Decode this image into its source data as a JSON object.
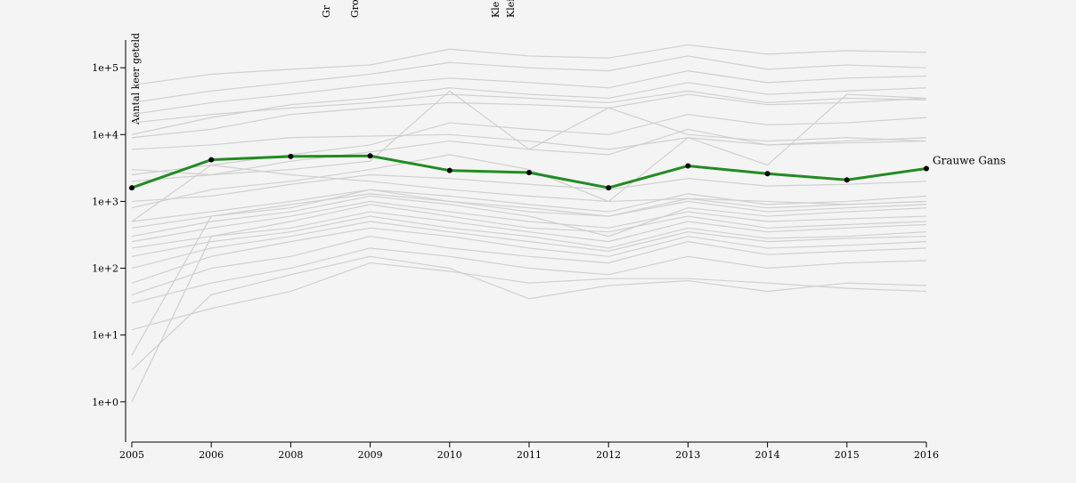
{
  "chart_data": {
    "type": "line",
    "y_label": "Aantal keer geteld",
    "annotations": [
      "Gr",
      "Gro",
      "Kle",
      "Klei"
    ],
    "categories": [
      "2005",
      "2006",
      "2008",
      "2009",
      "2010",
      "2011",
      "2012",
      "2013",
      "2014",
      "2015",
      "2016"
    ],
    "log_scale": true,
    "ylim": [
      0.25,
      260000
    ],
    "yticks": [
      {
        "value": 1,
        "label": "1e+0"
      },
      {
        "value": 10,
        "label": "1e+1"
      },
      {
        "value": 100,
        "label": "1e+2"
      },
      {
        "value": 1000,
        "label": "1e+3"
      },
      {
        "value": 10000,
        "label": "1e+4"
      },
      {
        "value": 100000,
        "label": "1e+5"
      }
    ],
    "series": [
      {
        "color": "#d0d0d0",
        "values": [
          55000,
          80000,
          95000,
          110000,
          190000,
          150000,
          140000,
          220000,
          160000,
          180000,
          170000
        ]
      },
      {
        "color": "#d0d0d0",
        "values": [
          30000,
          45000,
          60000,
          80000,
          120000,
          100000,
          90000,
          150000,
          95000,
          110000,
          100000
        ]
      },
      {
        "color": "#d0d0d0",
        "values": [
          20000,
          30000,
          40000,
          55000,
          70000,
          60000,
          50000,
          90000,
          60000,
          70000,
          75000
        ]
      },
      {
        "color": "#d0d0d0",
        "values": [
          10000,
          18000,
          28000,
          35000,
          50000,
          40000,
          35000,
          60000,
          40000,
          45000,
          50000
        ]
      },
      {
        "color": "#d0d0d0",
        "values": [
          9000,
          12000,
          20000,
          25000,
          30000,
          28000,
          25000,
          40000,
          28000,
          30000,
          35000
        ]
      },
      {
        "color": "#d0d0d0",
        "values": [
          15000,
          20000,
          25000,
          30000,
          40000,
          35000,
          30000,
          45000,
          30000,
          35000,
          33000
        ]
      },
      {
        "color": "#d0d0d0",
        "values": [
          6000,
          7000,
          9000,
          9500,
          10000,
          8000,
          6000,
          9000,
          7000,
          7500,
          8000
        ]
      },
      {
        "color": "#d0d0d0",
        "values": [
          2500,
          3500,
          5000,
          7000,
          15000,
          12000,
          10000,
          20000,
          14000,
          15000,
          18000
        ]
      },
      {
        "color": "#d0d0d0",
        "values": [
          3000,
          2500,
          3000,
          4000,
          45000,
          6000,
          25000,
          10000,
          8000,
          9000,
          8000
        ]
      },
      {
        "color": "#d0d0d0",
        "values": [
          2000,
          2500,
          4000,
          5500,
          8000,
          6000,
          5000,
          12000,
          7000,
          8000,
          9000
        ]
      },
      {
        "color": "#d0d0d0",
        "values": [
          800,
          1500,
          2000,
          3000,
          5000,
          3000,
          1000,
          9000,
          3500,
          40000,
          35000
        ]
      },
      {
        "color": "#d0d0d0",
        "values": [
          1000,
          1200,
          1800,
          2500,
          2200,
          1800,
          1500,
          2200,
          1700,
          1800,
          2000
        ]
      },
      {
        "color": "#d0d0d0",
        "values": [
          500,
          700,
          1000,
          1500,
          1200,
          900,
          700,
          1300,
          900,
          1000,
          1200
        ]
      },
      {
        "color": "#d0d0d0",
        "values": [
          400,
          600,
          900,
          1300,
          1000,
          700,
          600,
          1100,
          800,
          900,
          1000
        ]
      },
      {
        "color": "#d0d0d0",
        "values": [
          300,
          500,
          700,
          1200,
          900,
          600,
          300,
          800,
          600,
          700,
          800
        ]
      },
      {
        "color": "#d0d0d0",
        "values": [
          250,
          400,
          600,
          1000,
          700,
          500,
          400,
          700,
          500,
          550,
          600
        ]
      },
      {
        "color": "#d0d0d0",
        "values": [
          200,
          300,
          400,
          700,
          500,
          350,
          250,
          500,
          350,
          400,
          450
        ]
      },
      {
        "color": "#d0d0d0",
        "values": [
          150,
          250,
          350,
          600,
          400,
          300,
          200,
          400,
          280,
          300,
          350
        ]
      },
      {
        "color": "#d0d0d0",
        "values": [
          100,
          200,
          300,
          500,
          350,
          250,
          180,
          350,
          250,
          280,
          300
        ]
      },
      {
        "color": "#d0d0d0",
        "values": [
          60,
          150,
          250,
          400,
          300,
          200,
          150,
          300,
          200,
          220,
          250
        ]
      },
      {
        "color": "#d0d0d0",
        "values": [
          40,
          100,
          150,
          300,
          200,
          150,
          120,
          250,
          160,
          180,
          200
        ]
      },
      {
        "color": "#d0d0d0",
        "values": [
          30,
          60,
          100,
          200,
          150,
          100,
          80,
          150,
          100,
          120,
          130
        ]
      },
      {
        "color": "#d0d0d0",
        "values": [
          12,
          25,
          45,
          120,
          90,
          60,
          70,
          70,
          60,
          50,
          45
        ]
      },
      {
        "color": "#d0d0d0",
        "values": [
          5,
          600,
          800,
          1500,
          1000,
          800,
          600,
          1000,
          700,
          800,
          900
        ]
      },
      {
        "color": "#d0d0d0",
        "values": [
          1,
          300,
          500,
          900,
          600,
          400,
          350,
          600,
          400,
          450,
          500
        ]
      },
      {
        "color": "#d0d0d0",
        "values": [
          3,
          40,
          80,
          150,
          100,
          35,
          55,
          65,
          45,
          60,
          55
        ]
      },
      {
        "color": "#d0d0d0",
        "values": [
          500,
          3500,
          2500,
          2000,
          1500,
          1200,
          1000,
          1100,
          1000,
          900,
          1000
        ]
      },
      {
        "name": "Grauwe Gans",
        "color": "#228b22",
        "values": [
          1600,
          4200,
          4700,
          4800,
          2900,
          2700,
          1600,
          3400,
          2600,
          2100,
          3100
        ]
      }
    ]
  }
}
